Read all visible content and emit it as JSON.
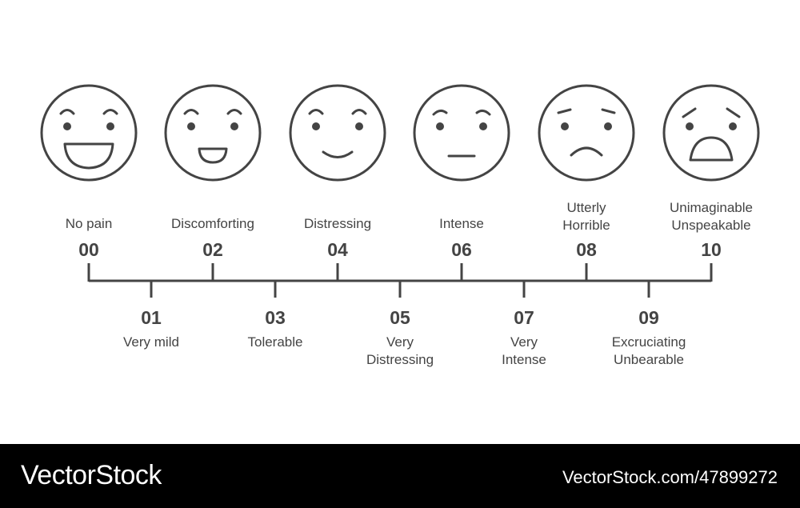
{
  "scale": {
    "faces": [
      {
        "level": "00",
        "label": "No pain",
        "expression": "big-smile-face-icon"
      },
      {
        "level": "02",
        "label": "Discomforting",
        "expression": "smile-face-icon"
      },
      {
        "level": "04",
        "label": "Distressing",
        "expression": "slight-smile-face-icon"
      },
      {
        "level": "06",
        "label": "Intense",
        "expression": "neutral-face-icon"
      },
      {
        "level": "08",
        "label": "Utterly\nHorrible",
        "expression": "frown-face-icon"
      },
      {
        "level": "10",
        "label": "Unimaginable\nUnspeakable",
        "expression": "anguished-face-icon"
      }
    ],
    "lower": [
      {
        "level": "01",
        "label": "Very mild"
      },
      {
        "level": "03",
        "label": "Tolerable"
      },
      {
        "level": "05",
        "label": "Very\nDistressing"
      },
      {
        "level": "07",
        "label": "Very\nIntense"
      },
      {
        "level": "09",
        "label": "Excruciating\nUnbearable"
      }
    ]
  },
  "colors": {
    "stroke": "#444444",
    "footer": "#000000",
    "footer_text": "#ffffff"
  },
  "footer": {
    "brand": "VectorStock",
    "image_id": "VectorStock.com/47899272"
  }
}
